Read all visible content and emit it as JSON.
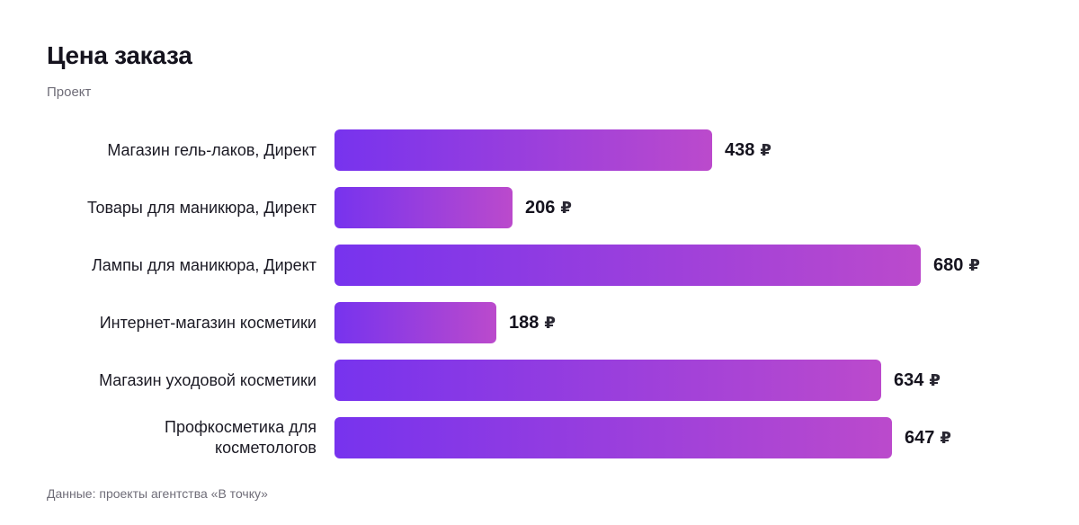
{
  "header": {
    "title": "Цена заказа",
    "subtitle": "Проект"
  },
  "footer": {
    "source": "Данные: проекты агентства «В точку»"
  },
  "colors": {
    "bar_gradient_start": "#7733ee",
    "bar_gradient_end": "#bb4acc"
  },
  "chart_data": {
    "type": "bar",
    "orientation": "horizontal",
    "title": "Цена заказа",
    "subtitle": "Проект",
    "categories": [
      "Магазин гель-лаков, Директ",
      "Товары для маникюра, Директ",
      "Лампы для маникюра, Директ",
      "Интернет-магазин косметики",
      "Магазин уходовой косметики",
      "Профкосметика для косметологов"
    ],
    "values": [
      438,
      206,
      680,
      188,
      634,
      647
    ],
    "value_unit": "₽",
    "xlim": [
      0,
      680
    ],
    "grid": false,
    "legend": "none"
  }
}
